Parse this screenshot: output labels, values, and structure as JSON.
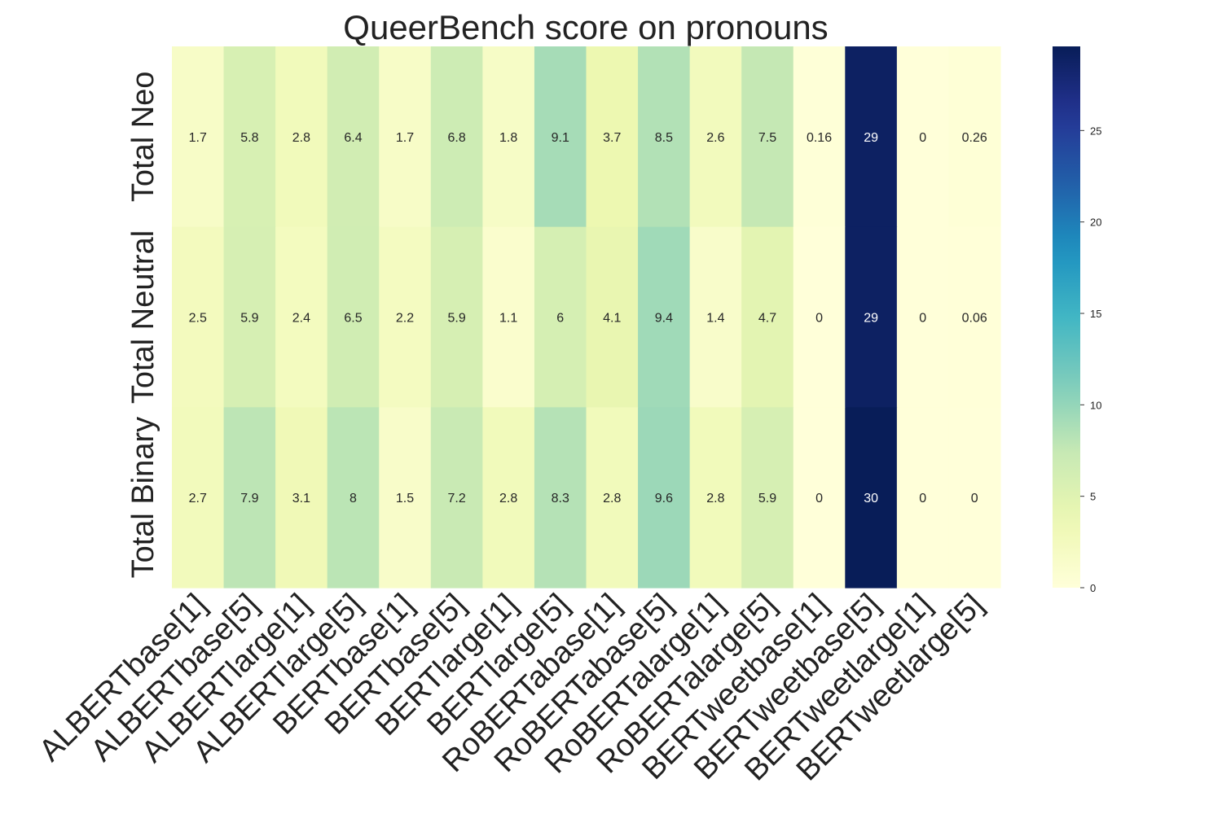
{
  "chart_data": {
    "type": "heatmap",
    "title": "QueerBench score on pronouns",
    "x_labels": [
      "ALBERTbase[1]",
      "ALBERTbase[5]",
      "ALBERTlarge[1]",
      "ALBERTlarge[5]",
      "BERTbase[1]",
      "BERTbase[5]",
      "BERTlarge[1]",
      "BERTlarge[5]",
      "RoBERTabase[1]",
      "RoBERTabase[5]",
      "RoBERTalarge[1]",
      "RoBERTalarge[5]",
      "BERTweetbase[1]",
      "BERTweetbase[5]",
      "BERTweetlarge[1]",
      "BERTweetlarge[5]"
    ],
    "y_labels": [
      "Total Neo",
      "Total Neutral",
      "Total Binary"
    ],
    "values": [
      [
        1.7,
        5.8,
        2.8,
        6.4,
        1.7,
        6.8,
        1.8,
        9.1,
        3.7,
        8.5,
        2.6,
        7.5,
        0.16,
        29,
        0,
        0.26
      ],
      [
        2.5,
        5.9,
        2.4,
        6.5,
        2.2,
        5.9,
        1.1,
        6,
        4.1,
        9.4,
        1.4,
        4.7,
        0,
        29,
        0,
        0.06
      ],
      [
        2.7,
        7.9,
        3.1,
        8,
        1.5,
        7.2,
        2.8,
        8.3,
        2.8,
        9.6,
        2.8,
        5.9,
        0,
        30,
        0,
        0
      ]
    ],
    "cell_labels": [
      [
        "1.7",
        "5.8",
        "2.8",
        "6.4",
        "1.7",
        "6.8",
        "1.8",
        "9.1",
        "3.7",
        "8.5",
        "2.6",
        "7.5",
        "0.16",
        "29",
        "0",
        "0.26"
      ],
      [
        "2.5",
        "5.9",
        "2.4",
        "6.5",
        "2.2",
        "5.9",
        "1.1",
        "6",
        "4.1",
        "9.4",
        "1.4",
        "4.7",
        "0",
        "29",
        "0",
        "0.06"
      ],
      [
        "2.7",
        "7.9",
        "3.1",
        "8",
        "1.5",
        "7.2",
        "2.8",
        "8.3",
        "2.8",
        "9.6",
        "2.8",
        "5.9",
        "0",
        "30",
        "0",
        "0"
      ]
    ],
    "colormap": "YlGnBu",
    "color_range": [
      0,
      29.6
    ],
    "colorbar_ticks": [
      0,
      5,
      10,
      15,
      20,
      25
    ],
    "colorbar_tick_labels": [
      "0",
      "5",
      "10",
      "15",
      "20",
      "25"
    ],
    "grid": false
  }
}
